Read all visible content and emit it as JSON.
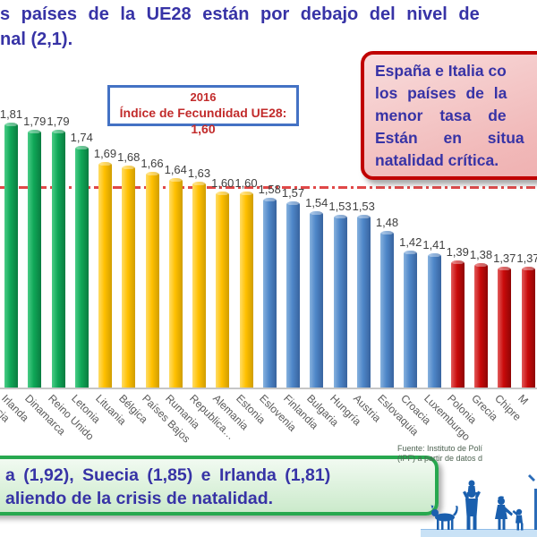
{
  "title": {
    "line1": "s países de la UE28 están por debajo del nivel de",
    "line2": "nal (2,1)."
  },
  "callout_top_right": {
    "lines": [
      "España e Italia co",
      "los países de la",
      "menor tasa de",
      "Están en situa",
      "natalidad crítica."
    ]
  },
  "ue28_box": {
    "year": "2016",
    "text": "Índice de Fecundidad UE28: 1,60"
  },
  "chart_data": {
    "type": "bar",
    "title": "Índice de Fecundidad UE28 2016",
    "categories": [
      "Irlanda",
      "Dinamarca",
      "Reino Unido",
      "Letonia",
      "Lituania",
      "Bélgica",
      "Países Bajos",
      "Rumania",
      "Republica…",
      "Alemania",
      "Estonia",
      "Eslovenia",
      "Finlandia",
      "Bulgaria",
      "Hungría",
      "Austria",
      "Eslovaquia",
      "Croacia",
      "Luxemburgo",
      "Polonia",
      "Grecia",
      "Chipre",
      "M"
    ],
    "values": [
      1.81,
      1.79,
      1.79,
      1.74,
      1.69,
      1.68,
      1.66,
      1.64,
      1.63,
      1.6,
      1.6,
      1.58,
      1.57,
      1.54,
      1.53,
      1.53,
      1.48,
      1.42,
      1.41,
      1.39,
      1.38,
      1.37,
      1.37
    ],
    "value_labels": [
      "1,81",
      "1,79",
      "1,79",
      "1,74",
      "1,69",
      "1,68",
      "1,66",
      "1,64",
      "1,63",
      "1,60",
      "1,60",
      "1,58",
      "1,57",
      "1,54",
      "1,53",
      "1,53",
      "1,48",
      "1,42",
      "1,41",
      "1,39",
      "1,38",
      "1,37",
      "1,37"
    ],
    "groups": [
      "green",
      "green",
      "green",
      "green",
      "yellow",
      "yellow",
      "yellow",
      "yellow",
      "yellow",
      "yellow",
      "yellow",
      "blue",
      "blue",
      "blue",
      "blue",
      "blue",
      "blue",
      "blue",
      "blue",
      "red",
      "red",
      "red",
      "red"
    ],
    "partial_left_category": "ecia",
    "reference_line": {
      "value": 1.6,
      "style": "dash-dot",
      "color": "#E04848"
    },
    "ylim": [
      1.0,
      1.9
    ],
    "grid": false,
    "legend": "none",
    "xlabel": "",
    "ylabel": ""
  },
  "callout_bottom": {
    "lines": [
      "a (1,92), Suecia (1,85) e Irlanda (1,81)",
      "aliendo de la crisis de natalidad."
    ]
  },
  "source": {
    "lines": [
      "Fuente: Instituto de Polí",
      "(IPF) a partir de datos d"
    ]
  },
  "colors": {
    "bar_green": "#0FA757",
    "bar_yellow": "#FFC000",
    "bar_blue": "#4E86C8",
    "bar_red": "#C90A0A",
    "accent_text": "#3733A6",
    "red_box_border": "#C00000",
    "green_box_border": "#27A84F",
    "ue28_text_red": "#C22B2B",
    "reference_line_red": "#E04848",
    "silhouette_blue": "#1A5FAE"
  }
}
